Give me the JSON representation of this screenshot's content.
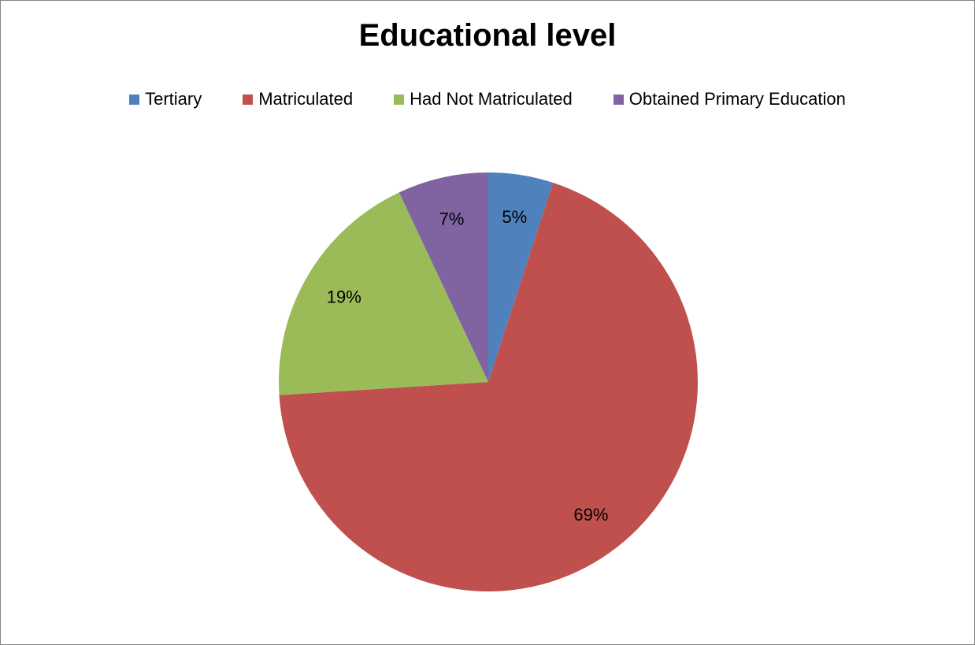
{
  "chart_data": {
    "type": "pie",
    "title": "Educational level",
    "legend_position": "top",
    "slices": [
      {
        "name": "Tertiary",
        "value": 5,
        "label": "5%",
        "color": "#4F81BD"
      },
      {
        "name": "Matriculated",
        "value": 69,
        "label": "69%",
        "color": "#C0504D"
      },
      {
        "name": "Had Not Matriculated",
        "value": 19,
        "label": "19%",
        "color": "#9BBB59"
      },
      {
        "name": "Obtained Primary Education",
        "value": 7,
        "label": "7%",
        "color": "#8064A2"
      }
    ]
  }
}
